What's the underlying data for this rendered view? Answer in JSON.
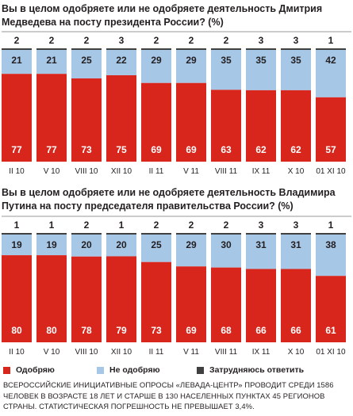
{
  "colors": {
    "approve": "#d9261c",
    "disapprove": "#a7c7e7",
    "undecided": "#404040",
    "label_light": "#ffffff",
    "label_dark": "#231f20",
    "divider": "#9a9a9a"
  },
  "legend": {
    "approve": "Одобряю",
    "disapprove": "Не одобряю",
    "undecided": "Затрудняюсь ответить"
  },
  "footnote": "ВСЕРОССИЙСКИЕ ИНИЦИАТИВНЫЕ ОПРОСЫ «ЛЕВАДА-ЦЕНТР» ПРОВОДИТ СРЕДИ 1586 ЧЕЛОВЕК В ВОЗРАСТЕ 18 ЛЕТ И СТАРШЕ В 130 НАСЕЛЕННЫХ ПУНКТАХ 45 РЕГИОНОВ СТРАНЫ. СТАТИСТИЧЕСКАЯ ПОГРЕШНОСТЬ НЕ ПРЕВЫШАЕТ 3,4%.",
  "chart_data": [
    {
      "type": "bar",
      "stacked": true,
      "title": "Вы в целом одобряете или не одобряете деятельность Дмитрия Медведева на посту президента России? (%)",
      "categories": [
        "II 10",
        "V 10",
        "VIII 10",
        "XII 10",
        "II 11",
        "V 11",
        "VIII 11",
        "IX 11",
        "X 10",
        "01 XI 10"
      ],
      "series": [
        {
          "name": "Одобряю",
          "values": [
            77,
            77,
            73,
            75,
            69,
            69,
            63,
            62,
            62,
            57
          ]
        },
        {
          "name": "Не одобряю",
          "values": [
            21,
            21,
            25,
            22,
            29,
            29,
            35,
            35,
            35,
            42
          ]
        },
        {
          "name": "Затрудняюсь ответить",
          "values": [
            2,
            2,
            2,
            3,
            2,
            2,
            2,
            3,
            3,
            1
          ]
        }
      ],
      "ylim": [
        0,
        100
      ]
    },
    {
      "type": "bar",
      "stacked": true,
      "title": "Вы в целом одобряете или не одобряете деятельность Владимира Путина на посту председателя правительства России? (%)",
      "categories": [
        "II 10",
        "V 10",
        "VIII 10",
        "XII 10",
        "II 11",
        "V 11",
        "VIII 11",
        "IX 11",
        "X 10",
        "01 XI 10"
      ],
      "series": [
        {
          "name": "Одобряю",
          "values": [
            80,
            80,
            78,
            79,
            73,
            69,
            68,
            66,
            66,
            61
          ]
        },
        {
          "name": "Не одобряю",
          "values": [
            19,
            19,
            20,
            20,
            25,
            29,
            30,
            31,
            31,
            38
          ]
        },
        {
          "name": "Затрудняюсь ответить",
          "values": [
            1,
            1,
            2,
            1,
            2,
            2,
            2,
            3,
            3,
            1
          ]
        }
      ],
      "ylim": [
        0,
        100
      ]
    }
  ]
}
